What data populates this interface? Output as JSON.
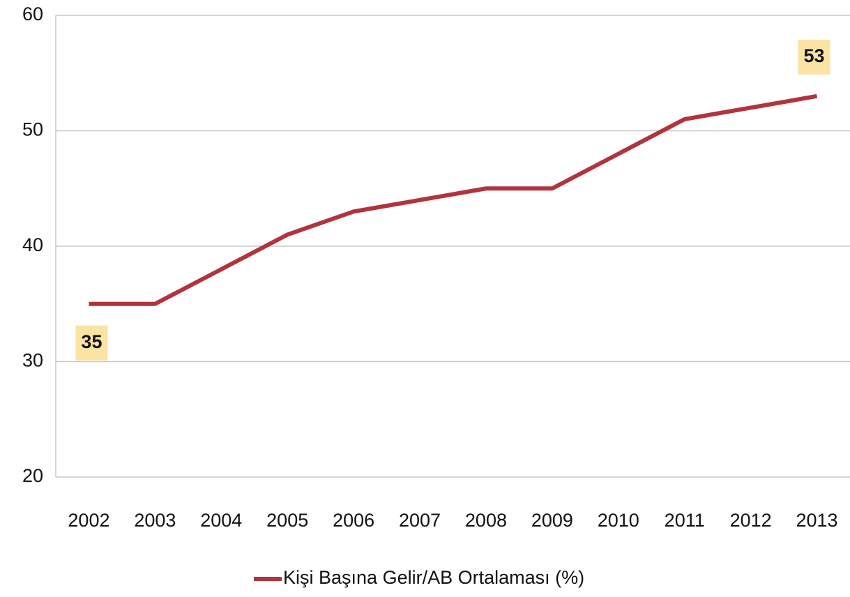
{
  "chart_data": {
    "type": "line",
    "x": [
      2002,
      2003,
      2004,
      2005,
      2006,
      2007,
      2008,
      2009,
      2010,
      2011,
      2012,
      2013
    ],
    "series": [
      {
        "name": "Kişi Başına Gelir/AB Ortalaması (%)",
        "color": "#b1343c",
        "values": [
          35,
          35,
          38,
          41,
          43,
          44,
          45,
          45,
          48,
          51,
          52,
          53
        ]
      }
    ],
    "ylim": [
      20,
      60
    ],
    "yticks": [
      20,
      30,
      40,
      50,
      60
    ],
    "grid": true,
    "legend": "bottom",
    "label_color": "#fbe3a4"
  }
}
